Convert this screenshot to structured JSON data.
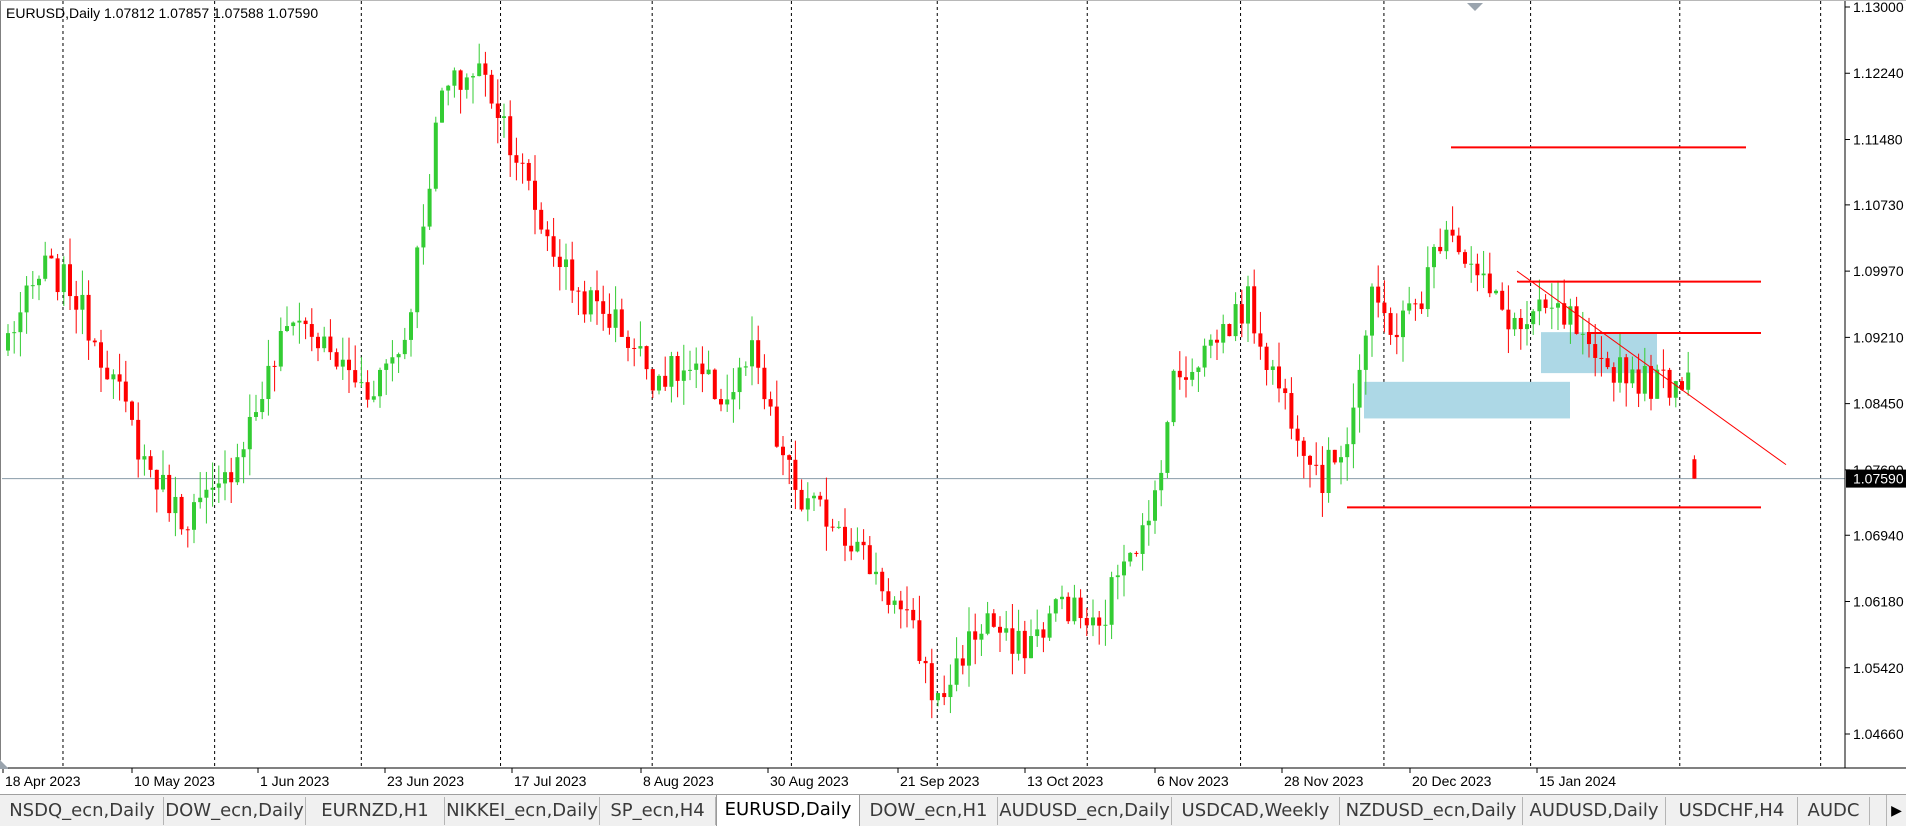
{
  "chart_window": {
    "symbol_info": "EURUSD,Daily  1.07812 1.07857 1.07588 1.07590",
    "current_price_label": "1.07590",
    "colors": {
      "bull": "#33cc33",
      "bear": "#ff0000",
      "rect": "#add8e6",
      "grid": "#000000",
      "axis": "#000000",
      "price_line": "#8a9ba8"
    }
  },
  "chart_data": {
    "type": "candlestick",
    "symbol": "EURUSD",
    "timeframe": "Daily",
    "ohlc_last": {
      "open": 1.07812,
      "high": 1.07857,
      "low": 1.07588,
      "close": 1.0759
    },
    "y_ticks": [
      "1.13000",
      "1.12240",
      "1.11480",
      "1.10730",
      "1.09970",
      "1.09210",
      "1.08450",
      "1.07690",
      "1.06940",
      "1.06180",
      "1.05420",
      "1.04660"
    ],
    "ylim": [
      1.0422,
      1.13
    ],
    "x_ticks": [
      "18 Apr 2023",
      "10 May 2023",
      "1 Jun 2023",
      "23 Jun 2023",
      "17 Jul 2023",
      "8 Aug 2023",
      "30 Aug 2023",
      "21 Sep 2023",
      "13 Oct 2023",
      "6 Nov 2023",
      "28 Nov 2023",
      "20 Dec 2023",
      "15 Jan 2024"
    ],
    "current_price": 1.0759,
    "close_path_keypoints": [
      [
        0,
        1.0922
      ],
      [
        6,
        1.1
      ],
      [
        10,
        1.098
      ],
      [
        16,
        1.089
      ],
      [
        22,
        1.078
      ],
      [
        28,
        1.0715
      ],
      [
        34,
        1.074
      ],
      [
        40,
        1.084
      ],
      [
        46,
        1.095
      ],
      [
        52,
        1.09
      ],
      [
        58,
        1.086
      ],
      [
        64,
        1.092
      ],
      [
        70,
        1.12
      ],
      [
        76,
        1.123
      ],
      [
        80,
        1.117
      ],
      [
        86,
        1.105
      ],
      [
        92,
        1.097
      ],
      [
        98,
        1.094
      ],
      [
        104,
        1.088
      ],
      [
        110,
        1.088
      ],
      [
        116,
        1.085
      ],
      [
        120,
        1.09
      ],
      [
        124,
        1.08
      ],
      [
        128,
        1.073
      ],
      [
        134,
        1.071
      ],
      [
        140,
        1.065
      ],
      [
        146,
        1.058
      ],
      [
        150,
        1.05
      ],
      [
        154,
        1.056
      ],
      [
        158,
        1.06
      ],
      [
        162,
        1.056
      ],
      [
        166,
        1.058
      ],
      [
        170,
        1.062
      ],
      [
        176,
        1.058
      ],
      [
        180,
        1.068
      ],
      [
        184,
        1.07
      ],
      [
        188,
        1.087
      ],
      [
        192,
        1.09
      ],
      [
        196,
        1.093
      ],
      [
        200,
        1.096
      ],
      [
        204,
        1.088
      ],
      [
        208,
        1.082
      ],
      [
        212,
        1.076
      ],
      [
        216,
        1.081
      ],
      [
        220,
        1.096
      ],
      [
        224,
        1.093
      ],
      [
        228,
        1.097
      ],
      [
        232,
        1.106
      ],
      [
        236,
        1.1
      ],
      [
        240,
        1.096
      ],
      [
        244,
        1.093
      ],
      [
        248,
        1.095
      ],
      [
        252,
        1.094
      ],
      [
        256,
        1.088
      ],
      [
        260,
        1.089
      ],
      [
        264,
        1.087
      ],
      [
        268,
        1.087
      ],
      [
        271,
        1.088
      ],
      [
        272,
        1.0759
      ]
    ],
    "horizontal_levels": [
      1.1139,
      1.0985,
      1.0926,
      1.0726
    ],
    "rectangles": [
      {
        "price_top": 1.087,
        "price_bottom": 1.0828
      },
      {
        "price_top": 1.0927,
        "price_bottom": 1.088
      }
    ],
    "trendline": {
      "from": [
        1.0997
      ],
      "to": [
        1.0775
      ]
    },
    "grid": "vertical-dotted"
  },
  "tabs": [
    {
      "label": "NSDQ_ecn,Daily"
    },
    {
      "label": "DOW_ecn,Daily"
    },
    {
      "label": "EURNZD,H1"
    },
    {
      "label": "NIKKEI_ecn,Daily"
    },
    {
      "label": "SP_ecn,H4"
    },
    {
      "label": "EURUSD,Daily",
      "active": true
    },
    {
      "label": "DOW_ecn,H1"
    },
    {
      "label": "AUDUSD_ecn,Daily"
    },
    {
      "label": "USDCAD,Weekly"
    },
    {
      "label": "NZDUSD_ecn,Daily"
    },
    {
      "label": "AUDUSD,Daily"
    },
    {
      "label": "USDCHF,H4"
    },
    {
      "label": "AUDC"
    }
  ],
  "tab_scroll_icon": "chevron-right-icon"
}
